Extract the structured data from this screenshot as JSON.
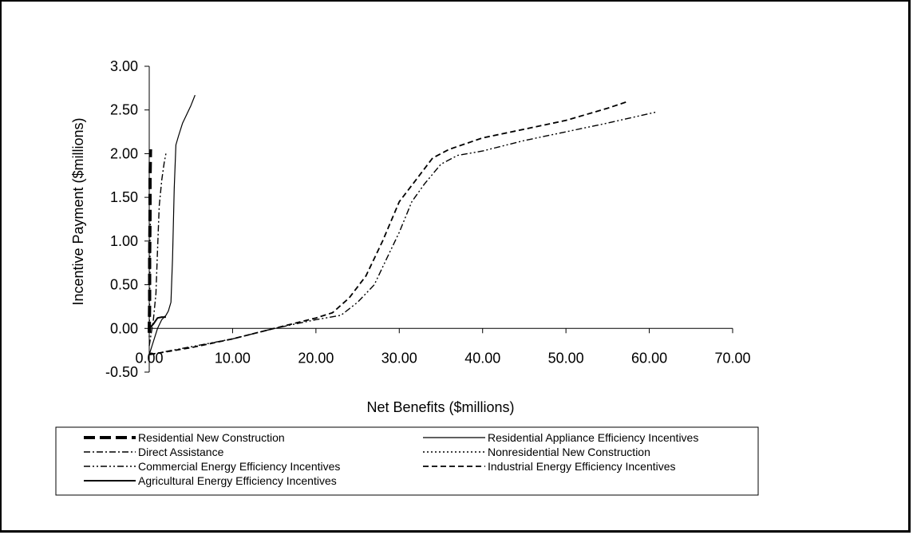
{
  "chart_data": {
    "type": "line",
    "title": "",
    "xlabel": "Net Benefits ($millions)",
    "ylabel": "Incentive Payment ($millions)",
    "xlim": [
      0,
      70
    ],
    "ylim": [
      -0.5,
      3.0
    ],
    "x_ticks": [
      "0.00",
      "10.00",
      "20.00",
      "30.00",
      "40.00",
      "50.00",
      "60.00",
      "70.00"
    ],
    "y_ticks": [
      "-0.50",
      "0.00",
      "0.50",
      "1.00",
      "1.50",
      "2.00",
      "2.50",
      "3.00"
    ],
    "grid": false,
    "legend_position": "bottom",
    "series": [
      {
        "name": "Residential New Construction",
        "style": "long-dash-bold",
        "points": [
          [
            0.0,
            -0.05
          ],
          [
            0.05,
            0.3
          ],
          [
            0.05,
            0.8
          ],
          [
            0.1,
            1.3
          ],
          [
            0.1,
            1.7
          ],
          [
            0.15,
            2.05
          ]
        ]
      },
      {
        "name": "Residential Appliance Efficiency Incentives",
        "style": "solid-thin",
        "points": [
          [
            0.0,
            -0.3
          ],
          [
            0.5,
            -0.15
          ],
          [
            1.0,
            0.0
          ],
          [
            1.5,
            0.1
          ],
          [
            2.0,
            0.15
          ],
          [
            2.3,
            0.2
          ],
          [
            2.6,
            0.3
          ],
          [
            2.8,
            0.8
          ],
          [
            3.0,
            1.6
          ],
          [
            3.2,
            2.1
          ],
          [
            3.5,
            2.2
          ],
          [
            4.0,
            2.35
          ],
          [
            4.5,
            2.45
          ],
          [
            5.0,
            2.55
          ],
          [
            5.5,
            2.67
          ]
        ]
      },
      {
        "name": "Direct Assistance",
        "style": "dash-dot",
        "points": [
          [
            0.0,
            -0.2
          ],
          [
            0.5,
            0.1
          ],
          [
            0.8,
            0.4
          ],
          [
            1.0,
            0.9
          ],
          [
            1.2,
            1.4
          ],
          [
            1.5,
            1.7
          ],
          [
            1.8,
            1.9
          ],
          [
            2.0,
            2.0
          ]
        ]
      },
      {
        "name": "Nonresidential New Construction",
        "style": "dotted",
        "points": [
          [
            0.0,
            -0.1
          ],
          [
            0.05,
            0.3
          ],
          [
            0.1,
            0.7
          ],
          [
            0.1,
            1.0
          ],
          [
            0.15,
            1.3
          ]
        ]
      },
      {
        "name": "Commercial Energy Efficiency Incentives",
        "style": "dash-dot-dot",
        "points": [
          [
            0.0,
            -0.3
          ],
          [
            5.0,
            -0.21
          ],
          [
            10.0,
            -0.12
          ],
          [
            15.0,
            0.0
          ],
          [
            20.0,
            0.1
          ],
          [
            23.0,
            0.15
          ],
          [
            25.0,
            0.3
          ],
          [
            27.0,
            0.5
          ],
          [
            28.5,
            0.8
          ],
          [
            30.0,
            1.1
          ],
          [
            31.5,
            1.45
          ],
          [
            33.0,
            1.65
          ],
          [
            35.0,
            1.88
          ],
          [
            37.0,
            1.98
          ],
          [
            40.0,
            2.03
          ],
          [
            45.0,
            2.15
          ],
          [
            50.0,
            2.25
          ],
          [
            55.0,
            2.35
          ],
          [
            61.0,
            2.48
          ]
        ]
      },
      {
        "name": "Industrial Energy Efficiency Incentives",
        "style": "dash",
        "points": [
          [
            0.0,
            -0.3
          ],
          [
            5.0,
            -0.22
          ],
          [
            10.0,
            -0.12
          ],
          [
            15.0,
            0.0
          ],
          [
            20.0,
            0.12
          ],
          [
            22.0,
            0.18
          ],
          [
            24.0,
            0.35
          ],
          [
            26.0,
            0.6
          ],
          [
            28.0,
            1.0
          ],
          [
            30.0,
            1.45
          ],
          [
            32.0,
            1.7
          ],
          [
            34.0,
            1.95
          ],
          [
            36.0,
            2.05
          ],
          [
            40.0,
            2.18
          ],
          [
            45.0,
            2.28
          ],
          [
            50.0,
            2.38
          ],
          [
            55.0,
            2.52
          ],
          [
            57.5,
            2.6
          ]
        ]
      },
      {
        "name": "Agricultural Energy Efficiency Incentives",
        "style": "solid-medium",
        "points": [
          [
            0.0,
            0.0
          ],
          [
            0.5,
            0.05
          ],
          [
            1.0,
            0.12
          ],
          [
            1.5,
            0.13
          ],
          [
            2.0,
            0.13
          ]
        ]
      }
    ]
  }
}
